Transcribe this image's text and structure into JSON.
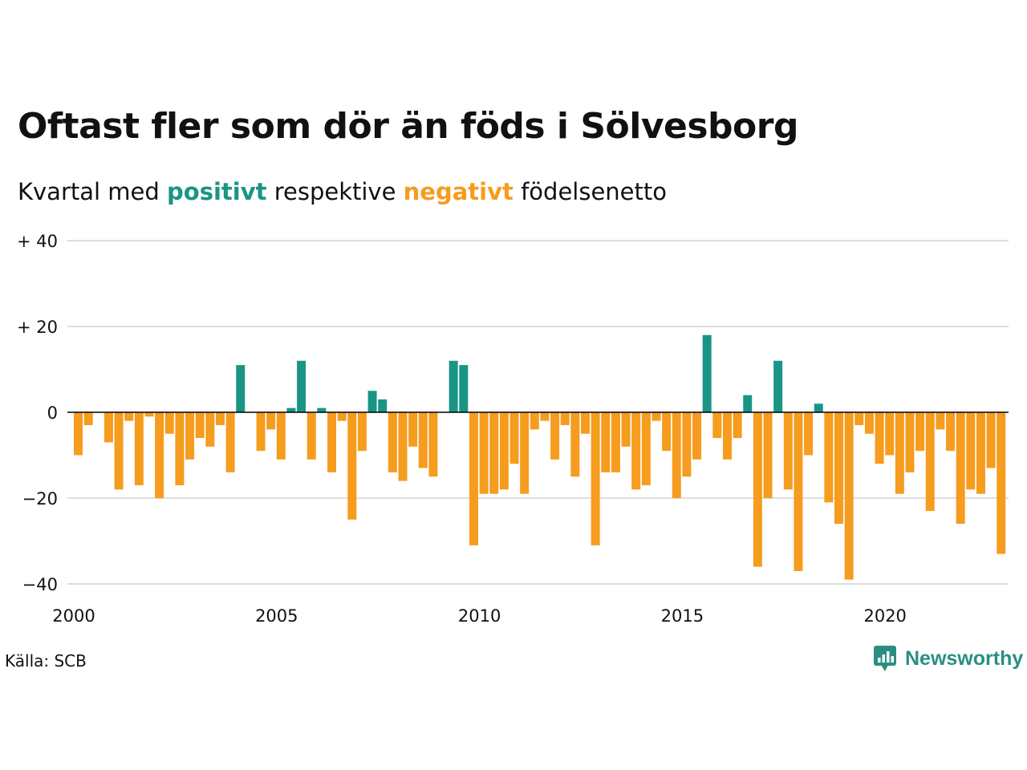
{
  "title": "Oftast fler som dör än föds i Sölvesborg",
  "subtitle": {
    "prefix": "Kvartal med",
    "positive_word": "positivt",
    "middle": "respektive",
    "negative_word": "negativt",
    "suffix": "födelsenetto"
  },
  "colors": {
    "positive": "#1a9585",
    "negative": "#f69c1e",
    "grid": "#dddddd",
    "zero_line": "#000000",
    "brand": "#2a8f82"
  },
  "source": "Källa: SCB",
  "brand": {
    "name": "Newsworthy",
    "icon": "chart-bubble-icon"
  },
  "chart_data": {
    "type": "bar",
    "x_start": "2000 Q1",
    "quarters_per_year": 4,
    "ylim": [
      -40,
      40
    ],
    "yticks": [
      {
        "value": 40,
        "label": "+ 40"
      },
      {
        "value": 20,
        "label": "+ 20"
      },
      {
        "value": 0,
        "label": "0"
      },
      {
        "value": -20,
        "label": "−20"
      },
      {
        "value": -40,
        "label": "−40"
      }
    ],
    "xticks": [
      "2000",
      "2005",
      "2010",
      "2015",
      "2020"
    ],
    "grid": true,
    "values": [
      -10,
      -3,
      0,
      -7,
      -18,
      -2,
      -17,
      -1,
      -20,
      -5,
      -17,
      -11,
      -6,
      -8,
      -3,
      -14,
      11,
      0,
      -9,
      -4,
      -11,
      1,
      12,
      -11,
      1,
      -14,
      -2,
      -25,
      -9,
      5,
      3,
      -14,
      -16,
      -8,
      -13,
      -15,
      0,
      12,
      11,
      -31,
      -19,
      -19,
      -18,
      -12,
      -19,
      -4,
      -2,
      -11,
      -3,
      -15,
      -5,
      -31,
      -14,
      -14,
      -8,
      -18,
      -17,
      -2,
      -9,
      -20,
      -15,
      -11,
      18,
      -6,
      -11,
      -6,
      4,
      -36,
      -20,
      12,
      -18,
      -37,
      -10,
      2,
      -21,
      -26,
      -39,
      -3,
      -5,
      -12,
      -10,
      -19,
      -14,
      -9,
      -23,
      -4,
      -9,
      -26,
      -18,
      -19,
      -13,
      -33
    ]
  }
}
